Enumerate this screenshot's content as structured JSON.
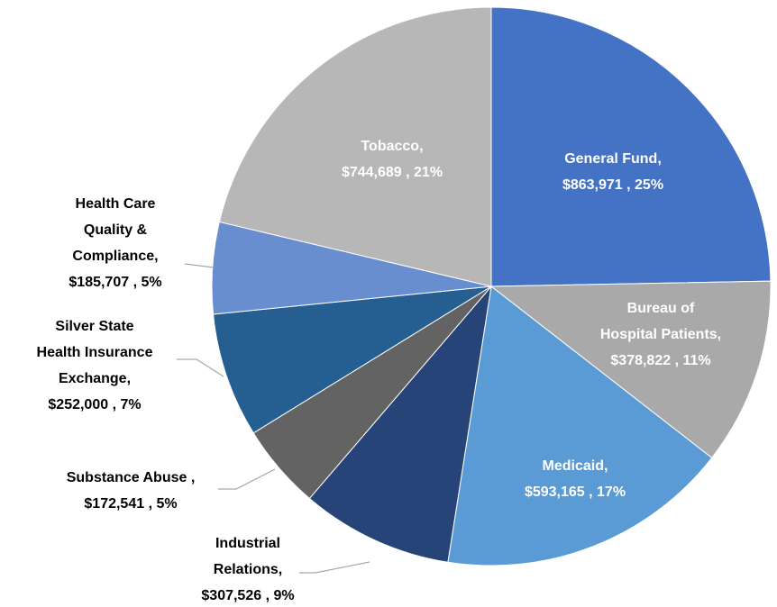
{
  "chart_data": {
    "type": "pie",
    "categories": [
      "General Fund,",
      "Bureau of\nHospital Patients,",
      "Medicaid,",
      "Industrial\nRelations,",
      "Substance Abuse ,",
      "Silver State\nHealth Insurance\nExchange,",
      "Health Care\nQuality &\nCompliance,",
      "Tobacco,"
    ],
    "values": [
      863971,
      378822,
      593165,
      307526,
      172541,
      252000,
      185707,
      744689
    ],
    "value_labels": [
      "$863,971 , 25%",
      "$378,822 , 11%",
      "$593,165 , 17%",
      "$307,526 , 9%",
      "$172,541 , 5%",
      "$252,000 , 7%",
      "$185,707 , 5%",
      "$744,689 , 21%"
    ],
    "colors": [
      "#4472c4",
      "#a9a9a9",
      "#5b9bd5",
      "#264478",
      "#636363",
      "#255e91",
      "#698ed0",
      "#b7b7b7"
    ]
  }
}
